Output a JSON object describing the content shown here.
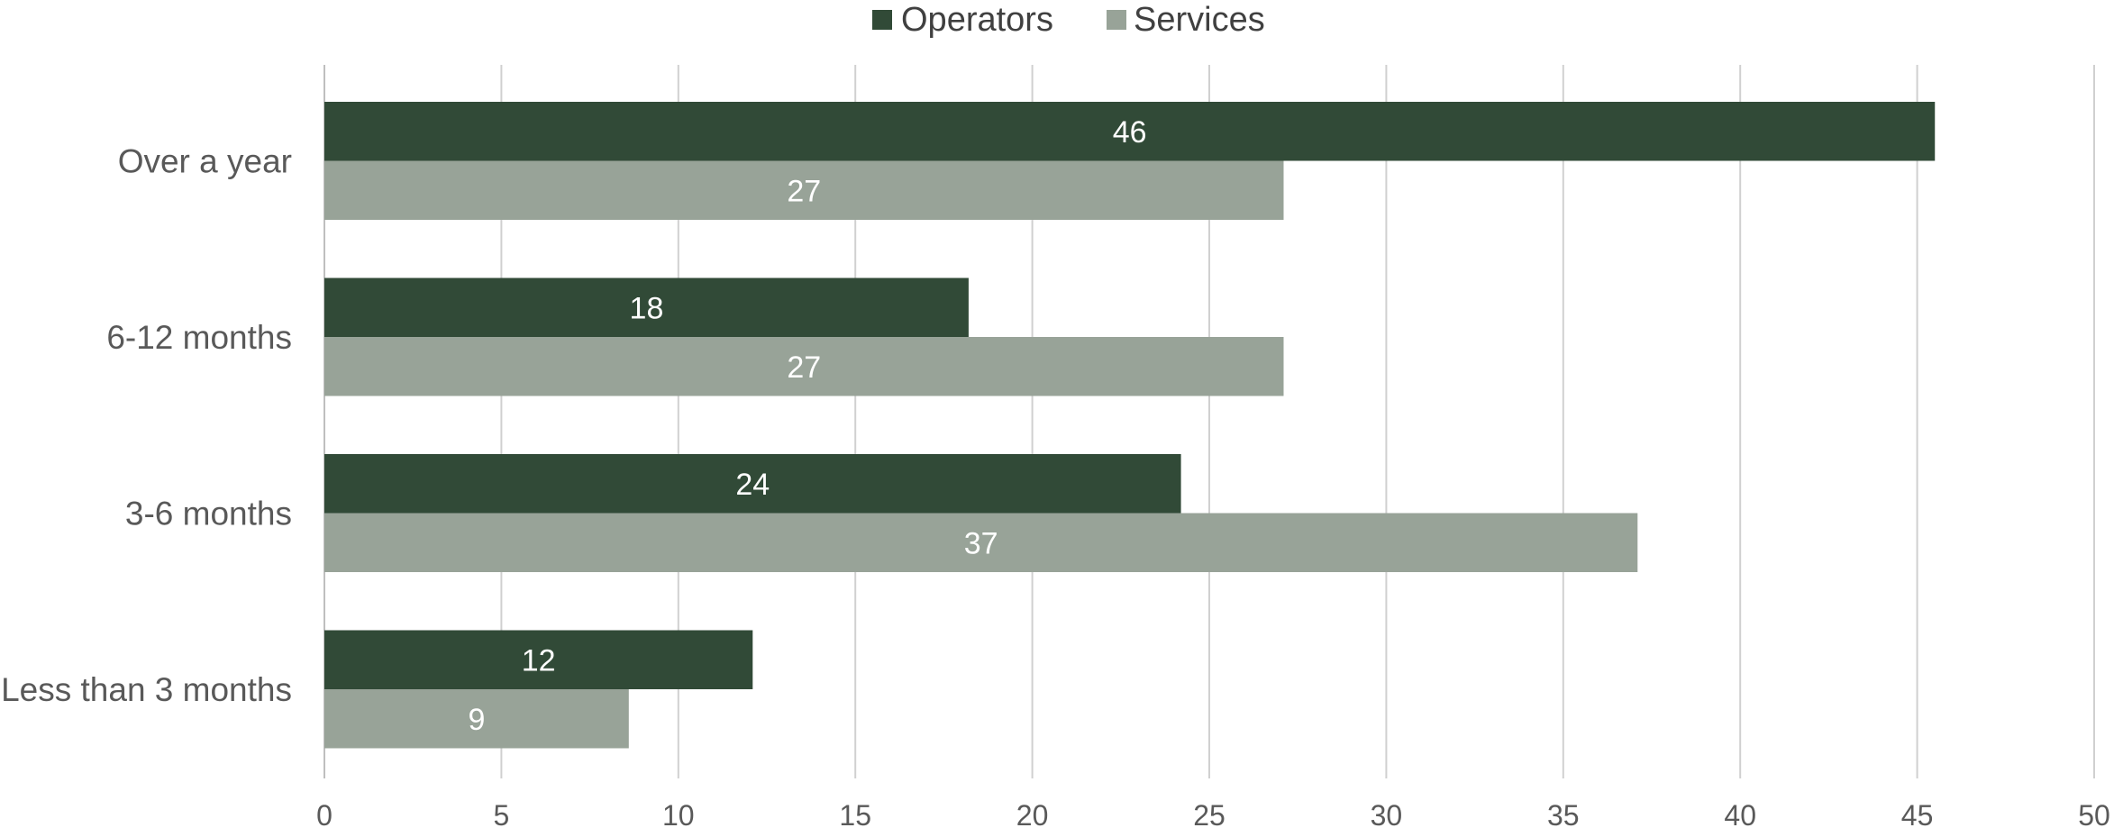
{
  "chart_data": {
    "type": "bar",
    "orientation": "horizontal",
    "categories": [
      "Over a year",
      "6-12 months",
      "3-6 months",
      "Less than 3 months"
    ],
    "series": [
      {
        "name": "Operators",
        "values": [
          45.5,
          18.2,
          24.2,
          12.1
        ],
        "data_labels": [
          "46",
          "18",
          "24",
          "12"
        ],
        "color": "#314a37"
      },
      {
        "name": "Services",
        "values": [
          27.1,
          27.1,
          37.1,
          8.6
        ],
        "data_labels": [
          "27",
          "27",
          "37",
          "9"
        ],
        "color": "#98a398"
      }
    ],
    "xlim": [
      0,
      50
    ],
    "x_ticks": [
      0,
      5,
      10,
      15,
      20,
      25,
      30,
      35,
      40,
      45,
      50
    ],
    "grid": true,
    "legend_position": "top"
  }
}
